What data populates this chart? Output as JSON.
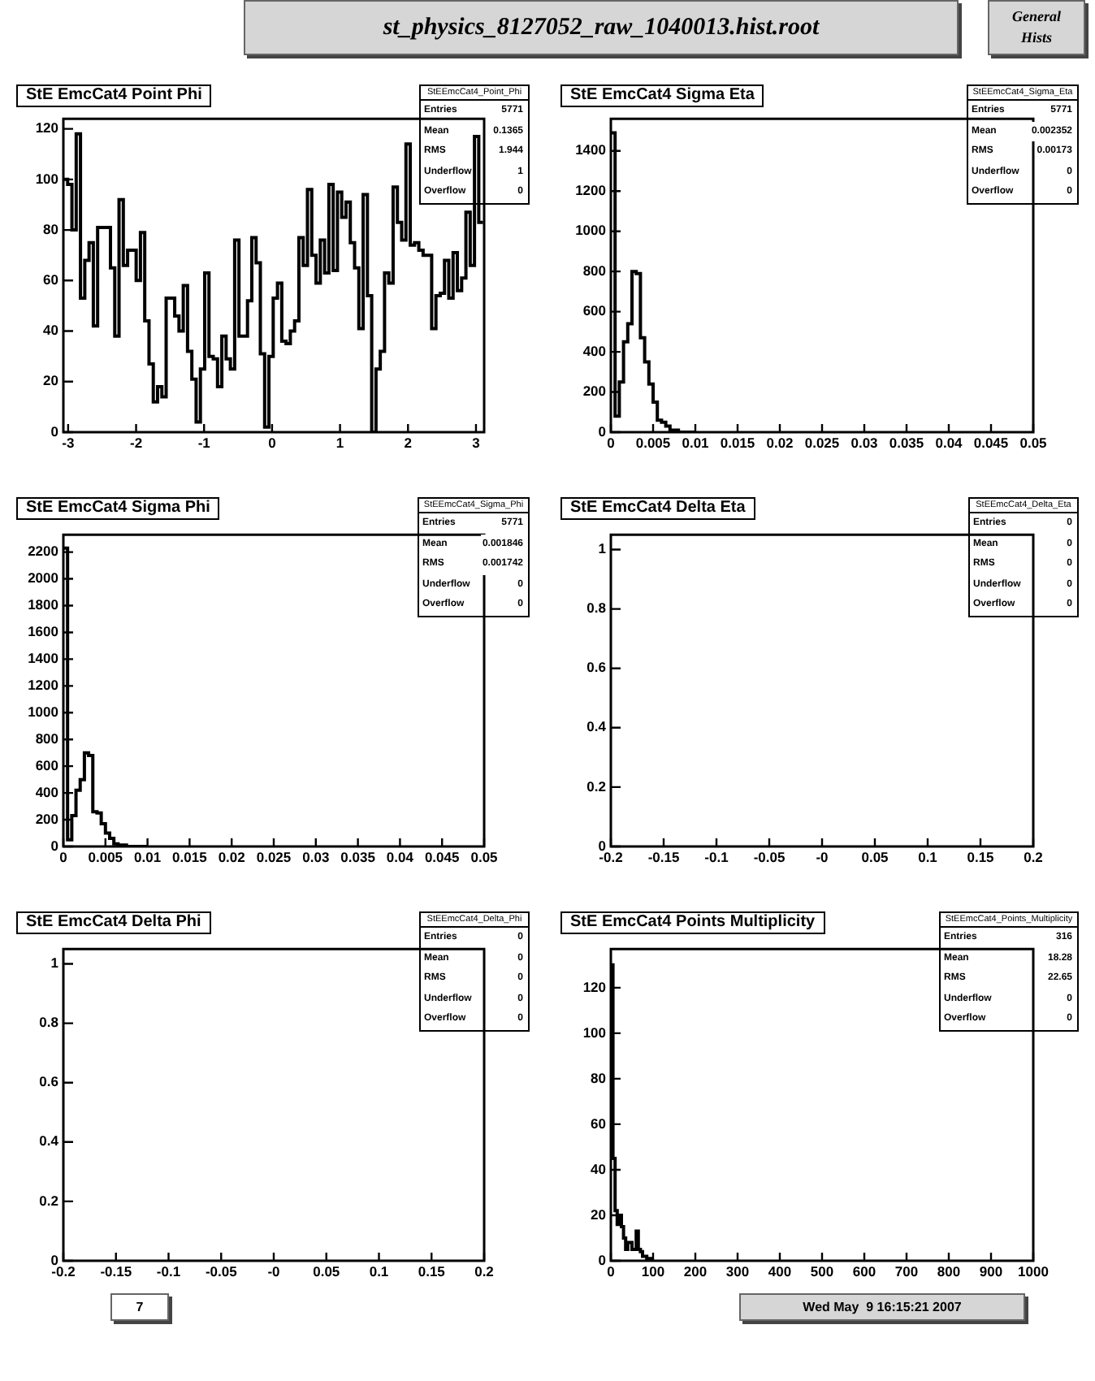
{
  "chart_data": [
    {
      "type": "other",
      "title": "st_physics_8127052_raw_1040013.hist.root",
      "annotations": [
        "General Hists"
      ]
    },
    {
      "type": "histogram",
      "title": "StE EmcCat4 Point Phi",
      "bins": [
        -3.07,
        -3.007,
        -2.944,
        -2.881,
        -2.818,
        -2.755,
        -2.692,
        -2.629,
        -2.566,
        -2.503,
        -2.44,
        -2.377,
        -2.314,
        -2.251,
        -2.188,
        -2.125,
        -2.062,
        -1.999,
        -1.936,
        -1.873,
        -1.81,
        -1.747,
        -1.684,
        -1.621,
        -1.558,
        -1.495,
        -1.432,
        -1.369,
        -1.306,
        -1.243,
        -1.18,
        -1.117,
        -1.054,
        -0.991,
        -0.928,
        -0.865,
        -0.802,
        -0.739,
        -0.676,
        -0.613,
        -0.55,
        -0.487,
        -0.424,
        -0.361,
        -0.298,
        -0.235,
        -0.172,
        -0.109,
        -0.046,
        0.017,
        0.08,
        0.143,
        0.206,
        0.269,
        0.332,
        0.395,
        0.458,
        0.521,
        0.584,
        0.647,
        0.71,
        0.773,
        0.836,
        0.899,
        0.962,
        1.025,
        1.088,
        1.151,
        1.214,
        1.277,
        1.34,
        1.403,
        1.466,
        1.529,
        1.592,
        1.655,
        1.718,
        1.781,
        1.844,
        1.907,
        1.97,
        2.033,
        2.096,
        2.159,
        2.222,
        2.285,
        2.348,
        2.411,
        2.474,
        2.537,
        2.6,
        2.663,
        2.726,
        2.789,
        2.852,
        2.915,
        2.978,
        3.041,
        3.104
      ],
      "values": [
        100,
        98,
        80,
        118,
        53,
        68,
        75,
        42,
        81,
        81,
        81,
        65,
        38,
        92,
        66,
        72,
        72,
        60,
        79,
        44,
        27,
        12,
        18,
        14,
        53,
        53,
        46,
        40,
        58,
        32,
        21,
        4,
        25,
        63,
        30,
        29,
        18,
        38,
        29,
        25,
        76,
        38,
        38,
        52,
        77,
        67,
        31,
        2,
        30,
        53,
        59,
        36,
        35,
        40,
        44,
        77,
        66,
        96,
        70,
        59,
        76,
        63,
        98,
        64,
        95,
        85,
        91,
        75,
        65,
        41,
        94,
        54,
        0,
        25,
        32,
        63,
        59,
        97,
        83,
        76,
        114,
        74,
        75,
        72,
        70,
        70,
        41,
        54,
        55,
        68,
        53,
        71,
        56,
        61,
        87,
        66,
        117,
        83
      ],
      "color": "#000000",
      "xlim": [
        -3.07,
        3.12
      ],
      "ylim": [
        0,
        124
      ],
      "xticks": [
        -3,
        -2,
        -1,
        0,
        1,
        2,
        3
      ],
      "yticks": [
        0,
        20,
        40,
        60,
        80,
        100,
        120
      ],
      "annotations": [
        "StEEmcCat4_Point_Phi",
        "Entries",
        "5771",
        "Mean",
        "0.1365",
        "RMS",
        "1.944",
        "Underflow",
        "1",
        "Overflow",
        "0"
      ]
    },
    {
      "type": "histogram",
      "title": "StE EmcCat4 Sigma Eta",
      "bins": [
        0,
        0.0005,
        0.001,
        0.0015,
        0.002,
        0.0025,
        0.003,
        0.0035,
        0.004,
        0.0045,
        0.005,
        0.0055,
        0.006,
        0.0065,
        0.007,
        0.0075,
        0.008,
        0.0085,
        0.009,
        0.0095,
        0.01
      ],
      "values": [
        1490,
        80,
        250,
        450,
        540,
        800,
        790,
        470,
        350,
        240,
        150,
        60,
        50,
        30,
        10,
        10,
        0,
        0,
        0,
        0
      ],
      "color": "#000000",
      "xlim": [
        0,
        0.05
      ],
      "ylim": [
        0,
        1560
      ],
      "xticks": [
        0,
        0.005,
        0.01,
        0.015,
        0.02,
        0.025,
        0.03,
        0.035,
        0.04,
        0.045,
        0.05
      ],
      "yticks": [
        0,
        200,
        400,
        600,
        800,
        1000,
        1200,
        1400
      ],
      "annotations": [
        "StEEmcCat4_Sigma_Eta",
        "Entries",
        "5771",
        "Mean",
        "0.002352",
        "RMS",
        "0.00173",
        "Underflow",
        "0",
        "Overflow",
        "0"
      ]
    },
    {
      "type": "histogram",
      "title": "StE EmcCat4 Sigma Phi",
      "bins": [
        0,
        0.0005,
        0.001,
        0.0015,
        0.002,
        0.0025,
        0.003,
        0.0035,
        0.004,
        0.0045,
        0.005,
        0.0055,
        0.006,
        0.0065,
        0.007,
        0.0075,
        0.008,
        0.0085,
        0.009,
        0.0095,
        0.01
      ],
      "values": [
        2230,
        50,
        230,
        420,
        500,
        700,
        680,
        260,
        250,
        170,
        100,
        60,
        20,
        10,
        10,
        0,
        0,
        0,
        0,
        0
      ],
      "color": "#000000",
      "xlim": [
        0,
        0.05
      ],
      "ylim": [
        0,
        2330
      ],
      "xticks": [
        0,
        0.005,
        0.01,
        0.015,
        0.02,
        0.025,
        0.03,
        0.035,
        0.04,
        0.045,
        0.05
      ],
      "yticks": [
        0,
        200,
        400,
        600,
        800,
        1000,
        1200,
        1400,
        1600,
        1800,
        2000,
        2200
      ],
      "annotations": [
        "StEEmcCat4_Sigma_Phi",
        "Entries",
        "5771",
        "Mean",
        "0.001846",
        "RMS",
        "0.001742",
        "Underflow",
        "0",
        "Overflow",
        "0"
      ]
    },
    {
      "type": "histogram",
      "title": "StE EmcCat4 Delta Eta",
      "xlim": [
        -0.2,
        0.2
      ],
      "ylim": [
        0,
        1.05
      ],
      "xticks": [
        -0.2,
        -0.15,
        -0.1,
        -0.05,
        {
          "value": 0,
          "label": "-0"
        },
        0.05,
        0.1,
        0.15,
        0.2
      ],
      "yticks": [
        0,
        0.2,
        0.4,
        0.6,
        0.8,
        1
      ],
      "annotations": [
        "StEEmcCat4_Delta_Eta",
        "Entries",
        "0",
        "Mean",
        "0",
        "RMS",
        "0",
        "Underflow",
        "0",
        "Overflow",
        "0"
      ]
    },
    {
      "type": "histogram",
      "title": "StE EmcCat4 Delta Phi",
      "xlim": [
        -0.2,
        0.2
      ],
      "ylim": [
        0,
        1.05
      ],
      "xticks": [
        -0.2,
        -0.15,
        -0.1,
        -0.05,
        {
          "value": 0,
          "label": "-0"
        },
        0.05,
        0.1,
        0.15,
        0.2
      ],
      "yticks": [
        0,
        0.2,
        0.4,
        0.6,
        0.8,
        1
      ],
      "annotations": [
        "StEEmcCat4_Delta_Phi",
        "Entries",
        "0",
        "Mean",
        "0",
        "RMS",
        "0",
        "Underflow",
        "0",
        "Overflow",
        "0"
      ]
    },
    {
      "type": "histogram",
      "title": "StE EmcCat4 Points Multiplicity",
      "bins": [
        0,
        5,
        10,
        15,
        20,
        25,
        30,
        35,
        40,
        45,
        50,
        55,
        60,
        65,
        70,
        75,
        80,
        85,
        90,
        95,
        100
      ],
      "values": [
        130,
        45,
        22,
        16,
        20,
        15,
        10,
        5,
        8,
        8,
        5,
        5,
        13,
        5,
        4,
        2,
        2,
        1,
        1,
        0
      ],
      "color": "#000000",
      "xlim": [
        0,
        1000
      ],
      "ylim": [
        0,
        137
      ],
      "xticks": [
        0,
        100,
        200,
        300,
        400,
        500,
        600,
        700,
        800,
        900,
        1000
      ],
      "yticks": [
        0,
        20,
        40,
        60,
        80,
        100,
        120
      ],
      "annotations": [
        "StEEmcCat4_Points_Multiplicity",
        "Entries",
        "316",
        "Mean",
        "18.28",
        "RMS",
        "22.65",
        "Underflow",
        "0",
        "Overflow",
        "0"
      ]
    },
    {
      "type": "other",
      "annotations": [
        "7",
        "Wed May  9 16:15:21 2007"
      ]
    }
  ]
}
